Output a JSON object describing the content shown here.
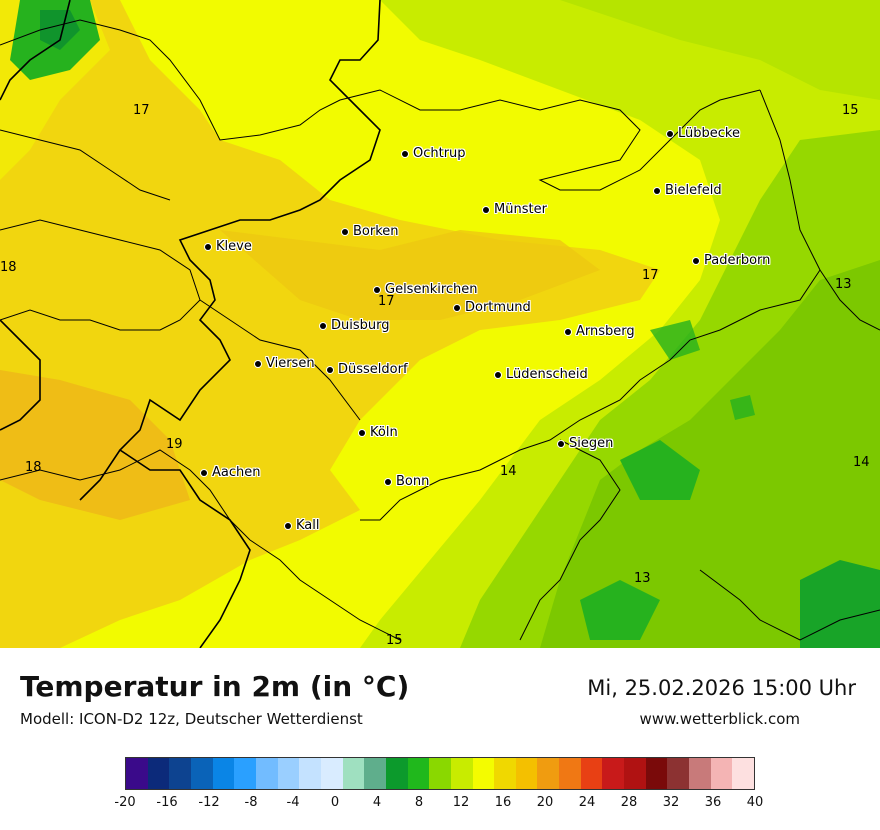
{
  "map": {
    "cities": [
      {
        "name": "Lübbecke"
      },
      {
        "name": "Ochtrup"
      },
      {
        "name": "Bielefeld"
      },
      {
        "name": "Münster"
      },
      {
        "name": "Borken"
      },
      {
        "name": "Kleve"
      },
      {
        "name": "Paderborn"
      },
      {
        "name": "Gelsenkirchen"
      },
      {
        "name": "Dortmund"
      },
      {
        "name": "Duisburg"
      },
      {
        "name": "Arnsberg"
      },
      {
        "name": "Viersen"
      },
      {
        "name": "Düsseldorf"
      },
      {
        "name": "Lüdenscheid"
      },
      {
        "name": "Köln"
      },
      {
        "name": "Siegen"
      },
      {
        "name": "Aachen"
      },
      {
        "name": "Bonn"
      },
      {
        "name": "Kall"
      }
    ],
    "temperature_labels": [
      "17",
      "15",
      "18",
      "17",
      "17",
      "13",
      "19",
      "18",
      "14",
      "14",
      "13",
      "15"
    ]
  },
  "header": {
    "title": "Temperatur in 2m (in °C)",
    "model": "Modell: ICON-D2 12z, Deutscher Wetterdienst",
    "datetime": "Mi, 25.02.2026 15:00 Uhr",
    "website": "www.wetterblick.com"
  },
  "legend": {
    "ticks": [
      "-20",
      "-16",
      "-12",
      "-8",
      "-4",
      "0",
      "4",
      "8",
      "12",
      "16",
      "20",
      "24",
      "28",
      "32",
      "36",
      "40"
    ],
    "colors": [
      "#3a0a8a",
      "#0c2a7a",
      "#0d4390",
      "#0a63b8",
      "#0a85e6",
      "#2aa0ff",
      "#72bcff",
      "#9acfff",
      "#c4e2ff",
      "#d9ecff",
      "#9fe0c0",
      "#5fae8c",
      "#0c9a2c",
      "#20b81c",
      "#8ad800",
      "#c8ec00",
      "#f4fc00",
      "#f0d800",
      "#f4c000",
      "#f09c10",
      "#f07814",
      "#e84014",
      "#c81a1a",
      "#b01212",
      "#7a0a0a",
      "#8c3232",
      "#c87a7a",
      "#f4b4b4",
      "#fde0e0"
    ]
  }
}
